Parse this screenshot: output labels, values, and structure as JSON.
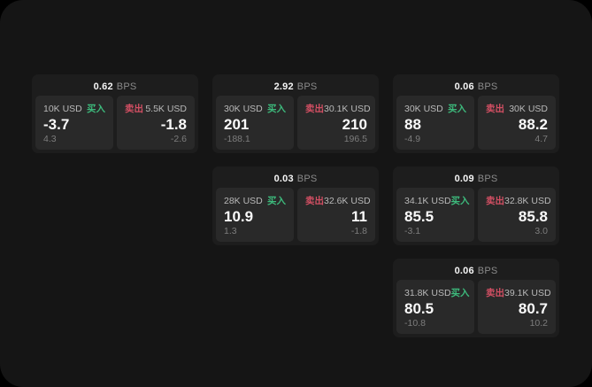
{
  "app": {
    "bps_unit": "BPS",
    "buy_label": "买入",
    "sell_label": "卖出"
  },
  "colors": {
    "buy": "#3dba7c",
    "sell": "#d24f63",
    "page_bg": "#151515",
    "card_bg": "#1d1d1d",
    "panel_bg": "#292929"
  },
  "cards": [
    {
      "bps": "0.62",
      "buy": {
        "amount": "10K USD",
        "price": "-3.7",
        "sub": "4.3"
      },
      "sell": {
        "amount": "5.5K USD",
        "price": "-1.8",
        "sub": "-2.6"
      }
    },
    {
      "bps": "2.92",
      "buy": {
        "amount": "30K USD",
        "price": "201",
        "sub": "-188.1"
      },
      "sell": {
        "amount": "30.1K USD",
        "price": "210",
        "sub": "196.5"
      }
    },
    {
      "bps": "0.06",
      "buy": {
        "amount": "30K USD",
        "price": "88",
        "sub": "-4.9"
      },
      "sell": {
        "amount": "30K USD",
        "price": "88.2",
        "sub": "4.7"
      }
    },
    {
      "bps": "0.03",
      "buy": {
        "amount": "28K USD",
        "price": "10.9",
        "sub": "1.3"
      },
      "sell": {
        "amount": "32.6K USD",
        "price": "11",
        "sub": "-1.8"
      }
    },
    {
      "bps": "0.09",
      "buy": {
        "amount": "34.1K USD",
        "price": "85.5",
        "sub": "-3.1"
      },
      "sell": {
        "amount": "32.8K USD",
        "price": "85.8",
        "sub": "3.0"
      }
    },
    {
      "bps": "0.06",
      "buy": {
        "amount": "31.8K USD",
        "price": "80.5",
        "sub": "-10.8"
      },
      "sell": {
        "amount": "39.1K USD",
        "price": "80.7",
        "sub": "10.2"
      }
    }
  ]
}
